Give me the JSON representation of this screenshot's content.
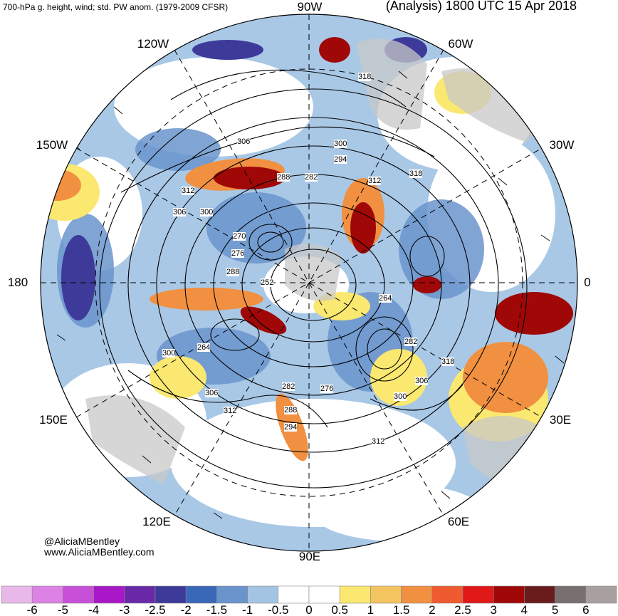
{
  "header": {
    "left": "700-hPa g. height, wind; std. PW anom. (1979-2009 CFSR)",
    "right": "(Analysis) 1800 UTC 15 Apr 2018"
  },
  "longitude_labels": {
    "w90": "90W",
    "w60": "60W",
    "w30": "30W",
    "zero": "0",
    "e30": "30E",
    "e60": "60E",
    "e90": "90E",
    "e120": "120E",
    "e150": "150E",
    "d180": "180",
    "w150": "150W",
    "w120": "120W"
  },
  "credit": {
    "handle": "@AliciaMBentley",
    "url": "www.AliciaMBentley.com"
  },
  "contour_labels": [
    "318",
    "306",
    "300",
    "294",
    "312",
    "318",
    "288",
    "282",
    "312",
    "306",
    "300",
    "270",
    "276",
    "288",
    "252",
    "264",
    "282",
    "318",
    "306",
    "300",
    "264",
    "306",
    "312",
    "282",
    "276",
    "288",
    "294",
    "312",
    "300"
  ],
  "colorbar": {
    "ticks": [
      "-6",
      "-5",
      "-4",
      "-3",
      "-2.5",
      "-2",
      "-1.5",
      "-1",
      "-0.5",
      "0",
      "0.5",
      "1",
      "1.5",
      "2",
      "2.5",
      "3",
      "4",
      "5",
      "6"
    ],
    "colors": [
      "#e8b8e8",
      "#dc82e4",
      "#c850d8",
      "#a818c8",
      "#6a2aa8",
      "#3e3a9a",
      "#3a68b8",
      "#6a94cc",
      "#a4c4e4",
      "#ffffff",
      "#ffffff",
      "#fbe870",
      "#f4c460",
      "#f09040",
      "#f05a30",
      "#e01818",
      "#a00808",
      "#6a1c1c",
      "#787070",
      "#a8a0a0"
    ]
  },
  "colors": {
    "ocean_neutral": "#ffffff",
    "land": "#c8c8c8",
    "contour": "#000000"
  }
}
